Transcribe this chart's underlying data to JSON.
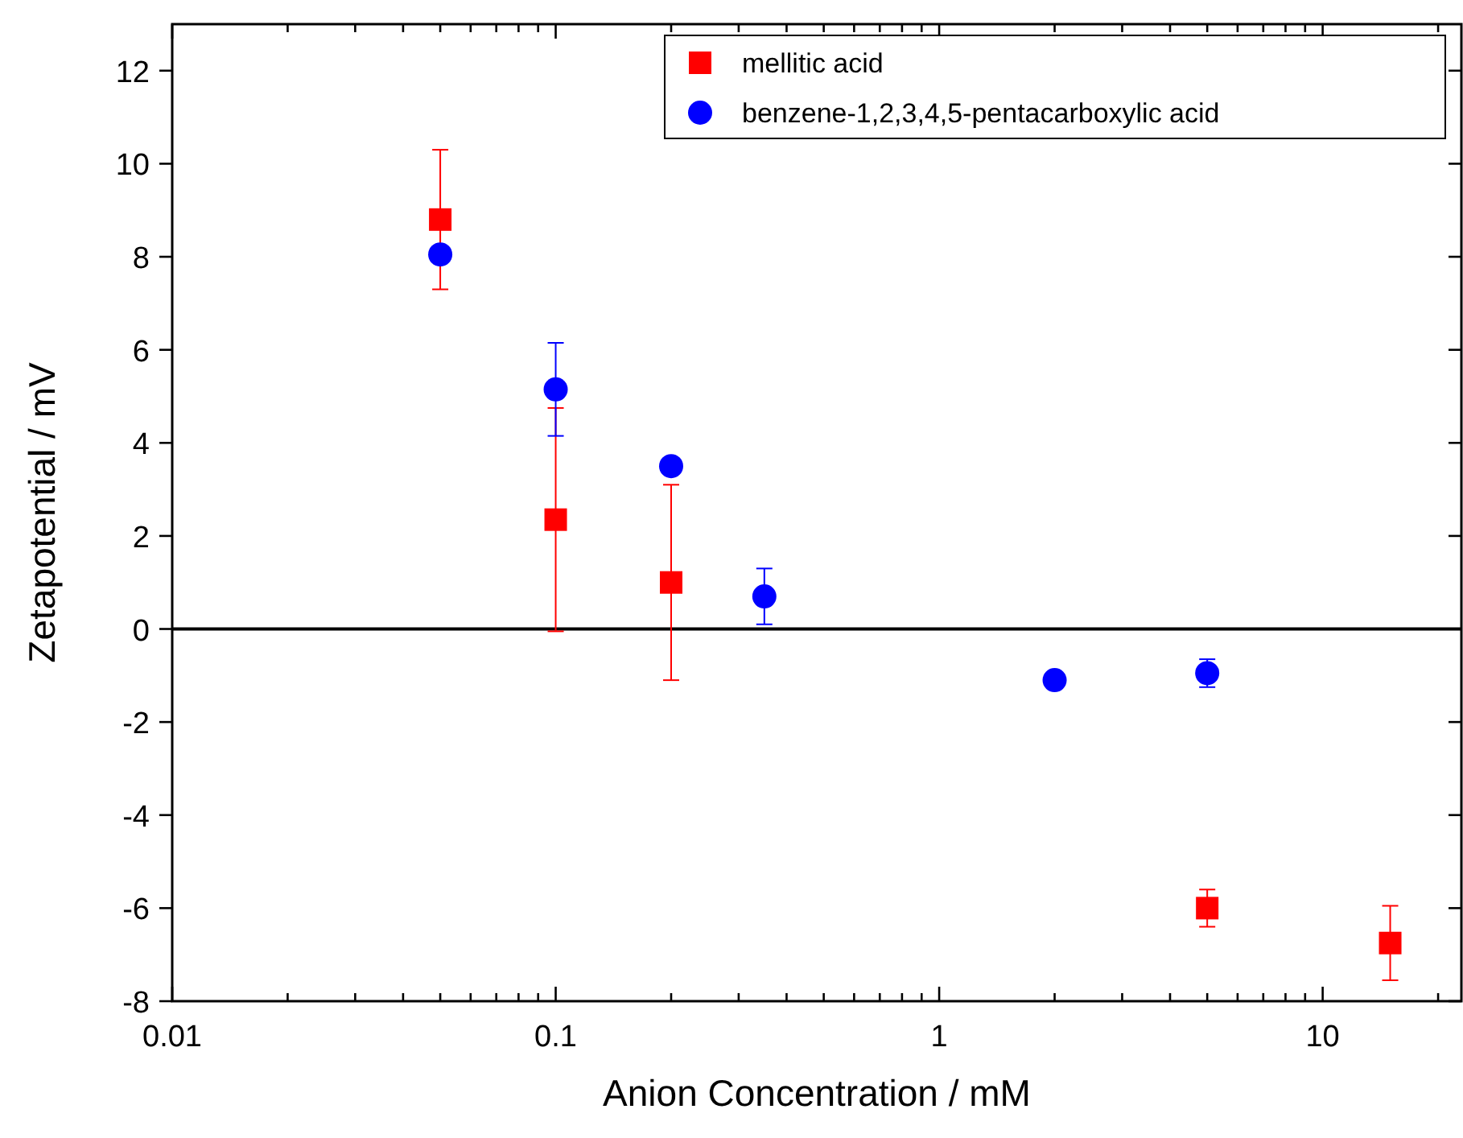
{
  "chart_data": {
    "type": "scatter",
    "xlabel": "Anion Concentration / mM",
    "ylabel": "Zetapotential / mV",
    "log": "x",
    "xlim": [
      0.01,
      23
    ],
    "ylim": [
      -8,
      13
    ],
    "xticks": [
      0.01,
      {
        "value": 0.02,
        "label": null
      },
      {
        "value": 0.03,
        "label": null
      },
      {
        "value": 0.04,
        "label": null
      },
      {
        "value": 0.05,
        "label": null
      },
      {
        "value": 0.06,
        "label": null
      },
      {
        "value": 0.07,
        "label": null
      },
      {
        "value": 0.08,
        "label": null
      },
      {
        "value": 0.09,
        "label": null
      },
      0.1,
      {
        "value": 0.2,
        "label": null
      },
      {
        "value": 0.3,
        "label": null
      },
      {
        "value": 0.4,
        "label": null
      },
      {
        "value": 0.5,
        "label": null
      },
      {
        "value": 0.6,
        "label": null
      },
      {
        "value": 0.7,
        "label": null
      },
      {
        "value": 0.8,
        "label": null
      },
      {
        "value": 0.9,
        "label": null
      },
      1,
      {
        "value": 2,
        "label": null
      },
      {
        "value": 3,
        "label": null
      },
      {
        "value": 4,
        "label": null
      },
      {
        "value": 5,
        "label": null
      },
      {
        "value": 6,
        "label": null
      },
      {
        "value": 7,
        "label": null
      },
      {
        "value": 8,
        "label": null
      },
      {
        "value": 9,
        "label": null
      },
      10,
      {
        "value": 20,
        "label": null
      }
    ],
    "yticks": [
      -8,
      -6,
      -4,
      -2,
      0,
      2,
      4,
      6,
      8,
      10,
      12
    ],
    "legend": "top right",
    "grid": false,
    "ref_lines": [
      {
        "axis": "y",
        "value": 0,
        "color": "#000000",
        "line_style": "solid"
      }
    ],
    "series": [
      {
        "name": "mellitic acid",
        "color": "#ff0000",
        "marker": "square",
        "x": [
          0.05,
          0.1,
          0.2,
          5,
          15
        ],
        "values": [
          8.8,
          2.35,
          1.0,
          -6.0,
          -6.75
        ],
        "errors": [
          1.5,
          2.4,
          2.1,
          0.4,
          0.8
        ]
      },
      {
        "name": "benzene-1,2,3,4,5-pentacarboxylic acid",
        "color": "#0000ff",
        "marker": "circle",
        "x": [
          0.05,
          0.1,
          0.2,
          0.35,
          2,
          5
        ],
        "values": [
          8.05,
          5.15,
          3.5,
          0.7,
          -1.1,
          -0.95
        ],
        "errors": [
          null,
          1.0,
          null,
          0.6,
          null,
          0.3
        ]
      }
    ]
  }
}
